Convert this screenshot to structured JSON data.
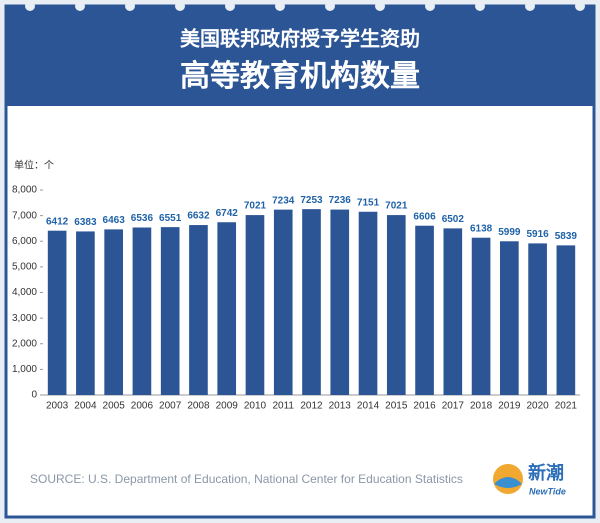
{
  "chart_data": {
    "type": "bar",
    "title": "美国联邦政府授予学生资助",
    "subtitle": "高等教育机构数量",
    "unit_label": "单位：个",
    "categories": [
      "2003",
      "2004",
      "2005",
      "2006",
      "2007",
      "2008",
      "2009",
      "2010",
      "2011",
      "2012",
      "2013",
      "2014",
      "2015",
      "2016",
      "2017",
      "2018",
      "2019",
      "2020",
      "2021"
    ],
    "values": [
      6412,
      6383,
      6463,
      6536,
      6551,
      6632,
      6742,
      7021,
      7234,
      7253,
      7236,
      7151,
      7021,
      6606,
      6502,
      6138,
      5999,
      5916,
      5839
    ],
    "color": "#2c5596",
    "label_color": "#1f62a8",
    "ylim": [
      0,
      8000
    ],
    "yticks": [
      0,
      {
        "value": 1000,
        "label": "1,000"
      },
      {
        "value": 2000,
        "label": "2,000"
      },
      {
        "value": 3000,
        "label": "3,000"
      },
      {
        "value": 4000,
        "label": "4,000"
      },
      {
        "value": 5000,
        "label": "5,000"
      },
      {
        "value": 6000,
        "label": "6,000"
      },
      {
        "value": 7000,
        "label": "7,000"
      },
      {
        "value": 8000,
        "label": "8,000"
      }
    ],
    "grid": false,
    "source": "SOURCE: U.S. Department of Education, National Center for Education Statistics",
    "logo": {
      "name": "新潮",
      "sub": "NewTide"
    }
  }
}
